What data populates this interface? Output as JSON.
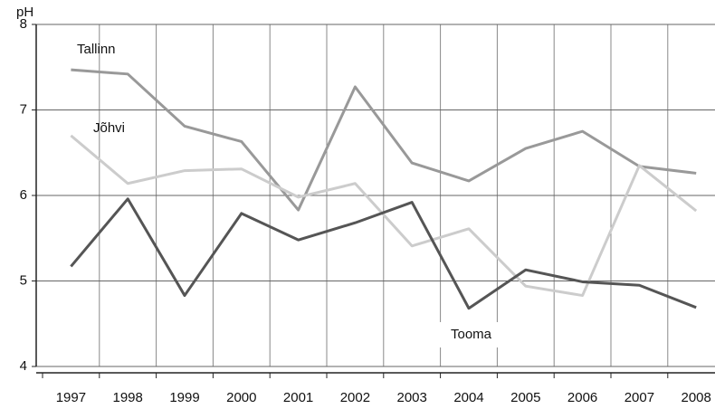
{
  "chart_data": {
    "type": "line",
    "y_label": "pH",
    "categories": [
      "1997",
      "1998",
      "1999",
      "2000",
      "2001",
      "2002",
      "2003",
      "2004",
      "2005",
      "2006",
      "2007",
      "2008"
    ],
    "series": [
      {
        "name": "Tallinn",
        "color": "#999999",
        "values": [
          7.47,
          7.42,
          6.81,
          6.63,
          5.83,
          7.27,
          6.38,
          6.17,
          6.55,
          6.75,
          6.34,
          6.26
        ]
      },
      {
        "name": "Jõhvi",
        "color": "#cccccc",
        "values": [
          6.7,
          6.14,
          6.29,
          6.31,
          5.98,
          6.14,
          5.41,
          5.61,
          4.94,
          4.83,
          6.35,
          5.82
        ]
      },
      {
        "name": "Tooma",
        "color": "#555555",
        "values": [
          5.17,
          5.96,
          4.83,
          5.79,
          5.48,
          5.68,
          5.92,
          4.68,
          5.13,
          4.99,
          4.95,
          4.69
        ]
      }
    ],
    "ylim": [
      4,
      8
    ],
    "yticks": [
      4,
      5,
      6,
      7,
      8
    ],
    "grid": true
  }
}
